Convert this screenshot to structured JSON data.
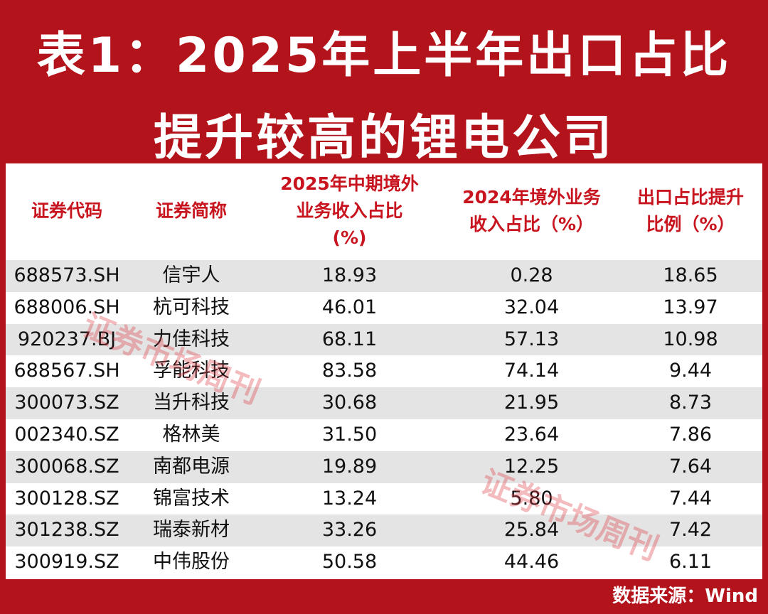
{
  "header": {
    "title_lines": [
      "表1：2025年上半年出口占比",
      "提升较高的锂电公司"
    ]
  },
  "table": {
    "columns": [
      [
        "证券代码"
      ],
      [
        "证券简称"
      ],
      [
        "2025年中期境外",
        "业务收入占比",
        "(%)"
      ],
      [
        "2024年境外业务",
        "收入占比（%）"
      ],
      [
        "出口占比提升",
        "比例（%）"
      ]
    ],
    "rows": [
      [
        "688573.SH",
        "信宇人",
        "18.93",
        "0.28",
        "18.65"
      ],
      [
        "688006.SH",
        "杭可科技",
        "46.01",
        "32.04",
        "13.97"
      ],
      [
        "920237.BJ",
        "力佳科技",
        "68.11",
        "57.13",
        "10.98"
      ],
      [
        "688567.SH",
        "孚能科技",
        "83.58",
        "74.14",
        "9.44"
      ],
      [
        "300073.SZ",
        "当升科技",
        "30.68",
        "21.95",
        "8.73"
      ],
      [
        "002340.SZ",
        "格林美",
        "31.50",
        "23.64",
        "7.86"
      ],
      [
        "300068.SZ",
        "南都电源",
        "19.89",
        "12.25",
        "7.64"
      ],
      [
        "300128.SZ",
        "锦富技术",
        "13.24",
        "5.80",
        "7.44"
      ],
      [
        "301238.SZ",
        "瑞泰新材",
        "33.26",
        "25.84",
        "7.42"
      ],
      [
        "300919.SZ",
        "中伟股份",
        "50.58",
        "44.46",
        "6.11"
      ]
    ]
  },
  "watermarks": [
    "证券市场周刊",
    "证券市场周刊"
  ],
  "footer": {
    "source": "数据来源：Wind"
  }
}
